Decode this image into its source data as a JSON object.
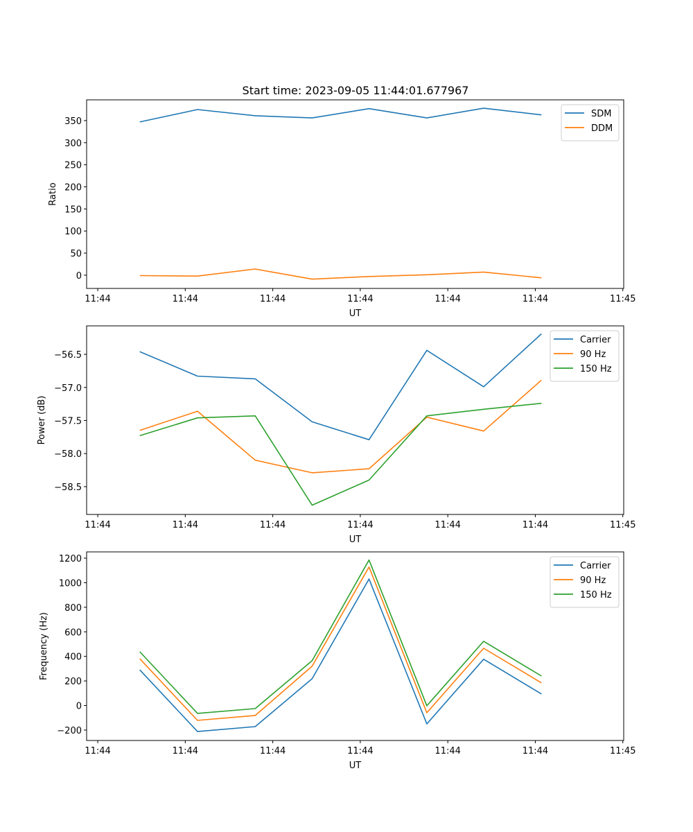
{
  "title": "Start time: 2023-09-05 11:44:01.677967",
  "chart_data": [
    {
      "type": "line",
      "xlabel": "UT",
      "ylabel": "Ratio",
      "x_tick_labels": [
        "11:44",
        "11:44",
        "11:44",
        "11:44",
        "11:44",
        "11:44",
        "11:45"
      ],
      "x": [
        0.48,
        1.14,
        1.8,
        2.45,
        3.1,
        3.76,
        4.41,
        5.07
      ],
      "xlim": [
        -0.127,
        6.01
      ],
      "ylim": [
        -30,
        397
      ],
      "yticks": [
        0,
        50,
        100,
        150,
        200,
        250,
        300,
        350
      ],
      "ytick_labels": [
        "0",
        "50",
        "100",
        "150",
        "200",
        "250",
        "300",
        "350"
      ],
      "legend_position": "top-right",
      "series": [
        {
          "name": "SDM",
          "color": "#1f77b4",
          "values": [
            347,
            375,
            361,
            356,
            377,
            356,
            378,
            363
          ]
        },
        {
          "name": "DDM",
          "color": "#ff7f0e",
          "values": [
            -1,
            -2,
            14,
            -9,
            -3,
            1,
            7,
            -6
          ]
        }
      ]
    },
    {
      "type": "line",
      "xlabel": "UT",
      "ylabel": "Power (dB)",
      "x_tick_labels": [
        "11:44",
        "11:44",
        "11:44",
        "11:44",
        "11:44",
        "11:44",
        "11:45"
      ],
      "x": [
        0.48,
        1.14,
        1.8,
        2.45,
        3.1,
        3.76,
        4.41,
        5.07
      ],
      "xlim": [
        -0.127,
        6.01
      ],
      "ylim": [
        -58.92,
        -56.07
      ],
      "yticks": [
        -58.5,
        -58.0,
        -57.5,
        -57.0,
        -56.5
      ],
      "ytick_labels": [
        "−58.5",
        "−58.0",
        "−57.5",
        "−57.0",
        "−56.5"
      ],
      "legend_position": "top-right",
      "series": [
        {
          "name": "Carrier",
          "color": "#1f77b4",
          "values": [
            -56.46,
            -56.83,
            -56.87,
            -57.52,
            -57.79,
            -56.44,
            -56.99,
            -56.19
          ]
        },
        {
          "name": "90 Hz",
          "color": "#ff7f0e",
          "values": [
            -57.65,
            -57.36,
            -58.1,
            -58.29,
            -58.23,
            -57.45,
            -57.66,
            -56.89
          ]
        },
        {
          "name": "150 Hz",
          "color": "#2ca02c",
          "values": [
            -57.73,
            -57.46,
            -57.43,
            -58.78,
            -58.4,
            -57.43,
            -57.33,
            -57.24
          ]
        }
      ]
    },
    {
      "type": "line",
      "xlabel": "UT",
      "ylabel": "Frequency (Hz)",
      "x_tick_labels": [
        "11:44",
        "11:44",
        "11:44",
        "11:44",
        "11:44",
        "11:44",
        "11:45"
      ],
      "x": [
        0.48,
        1.14,
        1.8,
        2.45,
        3.1,
        3.76,
        4.41,
        5.07
      ],
      "xlim": [
        -0.127,
        6.01
      ],
      "ylim": [
        -285,
        1251
      ],
      "yticks": [
        -200,
        0,
        200,
        400,
        600,
        800,
        1000,
        1200
      ],
      "ytick_labels": [
        "−200",
        "0",
        "200",
        "400",
        "600",
        "800",
        "1000",
        "1200"
      ],
      "legend_position": "top-right",
      "series": [
        {
          "name": "Carrier",
          "color": "#1f77b4",
          "values": [
            290,
            -212,
            -172,
            218,
            1030,
            -150,
            377,
            94
          ]
        },
        {
          "name": "90 Hz",
          "color": "#ff7f0e",
          "values": [
            381,
            -121,
            -81,
            320,
            1128,
            -59,
            466,
            184
          ]
        },
        {
          "name": "150 Hz",
          "color": "#2ca02c",
          "values": [
            438,
            -64,
            -25,
            365,
            1185,
            -2,
            523,
            240
          ]
        }
      ]
    }
  ]
}
